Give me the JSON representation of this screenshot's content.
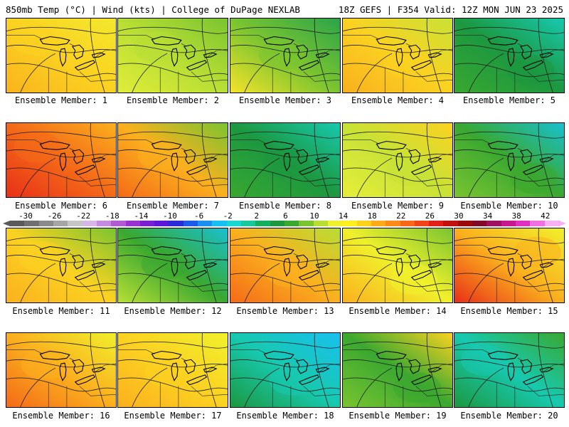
{
  "header": {
    "left": "850mb Temp (°C) | Wind (kts) | College of DuPage NEXLAB",
    "right": "18Z GEFS | F354 Valid: 12Z MON JUN 23 2025"
  },
  "colorbar": {
    "labels": [
      "-30",
      "-26",
      "-22",
      "-18",
      "-14",
      "-10",
      "-6",
      "-2",
      "2",
      "6",
      "10",
      "14",
      "18",
      "22",
      "26",
      "30",
      "34",
      "38",
      "42"
    ],
    "colors": [
      "#5a5a5a",
      "#707070",
      "#8a8a8a",
      "#a6a6a6",
      "#c6c6c6",
      "#d7b6e8",
      "#c58be0",
      "#b25ad6",
      "#9b30d0",
      "#7a1fd0",
      "#5b18d8",
      "#2a2ad8",
      "#1a5ce8",
      "#1a90f0",
      "#18c0f0",
      "#16d8d0",
      "#18c89a",
      "#14b060",
      "#1c9840",
      "#3aa830",
      "#7ac430",
      "#b8de34",
      "#f0f02c",
      "#fff01c",
      "#ffd21a",
      "#ffaa18",
      "#ff8a18",
      "#f86818",
      "#f04418",
      "#e02018",
      "#c01010",
      "#9a0a0a",
      "#800a28",
      "#a01060",
      "#c81890",
      "#e030c0",
      "#f070e0",
      "#f8b0f0"
    ]
  },
  "panels": [
    {
      "label": "Ensemble Member: 1",
      "colors": [
        "#fab31c",
        "#fbd221",
        "#f3e82d"
      ]
    },
    {
      "label": "Ensemble Member: 2",
      "colors": [
        "#e0ec38",
        "#b8de34",
        "#7ac430"
      ]
    },
    {
      "label": "Ensemble Member: 3",
      "colors": [
        "#f5e22a",
        "#7ac430",
        "#2aa44a"
      ]
    },
    {
      "label": "Ensemble Member: 4",
      "colors": [
        "#f8b01e",
        "#fbd221",
        "#c8e236"
      ]
    },
    {
      "label": "Ensemble Member: 5",
      "colors": [
        "#3aa830",
        "#1c9840",
        "#17c9b0"
      ]
    },
    {
      "label": "Ensemble Member: 6",
      "colors": [
        "#e83018",
        "#f46a18",
        "#fbb01e"
      ]
    },
    {
      "label": "Ensemble Member: 7",
      "colors": [
        "#f46a18",
        "#fbb01e",
        "#7ac430"
      ]
    },
    {
      "label": "Ensemble Member: 8",
      "colors": [
        "#3aa830",
        "#1c9840",
        "#17c9b0"
      ]
    },
    {
      "label": "Ensemble Member: 9",
      "colors": [
        "#e6ee3a",
        "#c8e236",
        "#fbd221"
      ]
    },
    {
      "label": "Ensemble Member: 10",
      "colors": [
        "#7ac430",
        "#3aa830",
        "#18c0d0"
      ]
    },
    {
      "label": "Ensemble Member: 11",
      "colors": [
        "#fbb01e",
        "#fbd221",
        "#7ac430"
      ]
    },
    {
      "label": "Ensemble Member: 12",
      "colors": [
        "#b8de34",
        "#3aa830",
        "#18c0d0"
      ]
    },
    {
      "label": "Ensemble Member: 13",
      "colors": [
        "#f46a18",
        "#fbb01e",
        "#b8de34"
      ]
    },
    {
      "label": "Ensemble Member: 14",
      "colors": [
        "#fbb01e",
        "#f0f02c",
        "#7ac430"
      ]
    },
    {
      "label": "Ensemble Member: 15",
      "colors": [
        "#e83018",
        "#fbb01e",
        "#f0f02c"
      ]
    },
    {
      "label": "Ensemble Member: 16",
      "colors": [
        "#f46a18",
        "#fbb01e",
        "#f0f02c"
      ]
    },
    {
      "label": "Ensemble Member: 17",
      "colors": [
        "#fbb01e",
        "#fbd221",
        "#f0f02c"
      ]
    },
    {
      "label": "Ensemble Member: 18",
      "colors": [
        "#1c9840",
        "#17c9b0",
        "#18c0f0"
      ]
    },
    {
      "label": "Ensemble Member: 19",
      "colors": [
        "#7ac430",
        "#3aa830",
        "#fbd221"
      ]
    },
    {
      "label": "Ensemble Member: 20",
      "colors": [
        "#1c9840",
        "#17c9b0",
        "#3aa830"
      ]
    }
  ]
}
